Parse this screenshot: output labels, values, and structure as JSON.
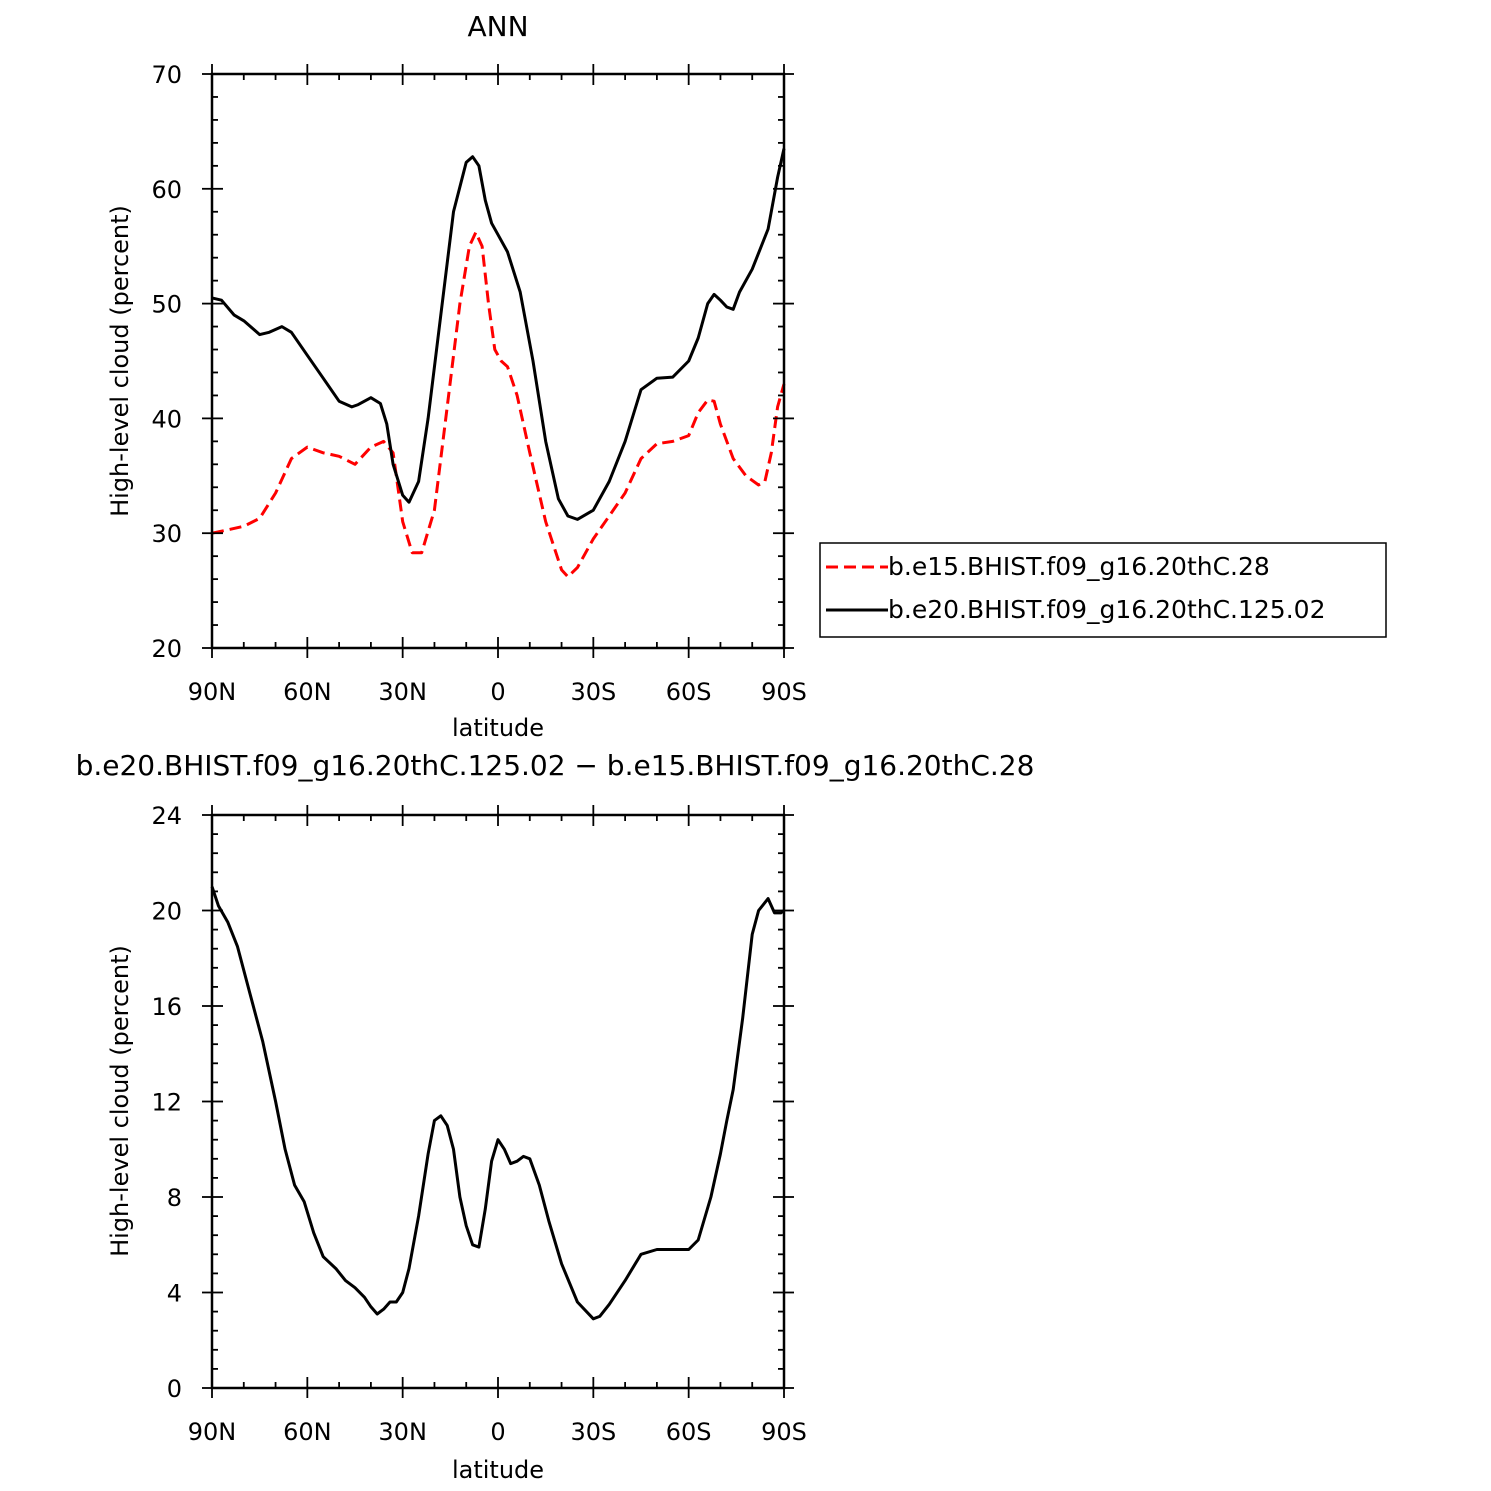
{
  "chart_data": [
    {
      "type": "line",
      "title": "ANN",
      "xlabel": "latitude",
      "ylabel": "High-level cloud (percent)",
      "xlim": [
        -90,
        90
      ],
      "ylim": [
        20,
        70
      ],
      "x_tick_values": [
        -90,
        -60,
        -30,
        0,
        30,
        60,
        90
      ],
      "x_tick_labels": [
        "90N",
        "60N",
        "30N",
        "0",
        "30S",
        "60S",
        "90S"
      ],
      "y_ticks": [
        20,
        30,
        40,
        50,
        60,
        70
      ],
      "legend_position": "right",
      "series": [
        {
          "name": "b.e15.BHIST.f09_g16.20thC.28",
          "color": "#ff0000",
          "style": "dashed",
          "x": [
            -90,
            -85,
            -80,
            -75,
            -70,
            -65,
            -60,
            -55,
            -50,
            -45,
            -40,
            -36,
            -33,
            -30,
            -27,
            -24,
            -20,
            -16,
            -12,
            -9,
            -7,
            -5,
            -3,
            -1,
            1,
            3,
            6,
            10,
            15,
            20,
            22,
            25,
            30,
            35,
            40,
            45,
            50,
            55,
            60,
            63,
            66,
            68,
            70,
            74,
            78,
            82,
            84,
            86,
            88,
            90
          ],
          "y": [
            30,
            30.3,
            30.6,
            31.3,
            33.5,
            36.5,
            37.5,
            37,
            36.7,
            36,
            37.5,
            38,
            37,
            31,
            28.3,
            28.3,
            32,
            41,
            50,
            55,
            56.2,
            55,
            50,
            46,
            45,
            44.5,
            42,
            37,
            31,
            26.8,
            26.2,
            27,
            29.5,
            31.5,
            33.5,
            36.5,
            37.8,
            38,
            38.5,
            40.5,
            41.6,
            41.5,
            39.5,
            36.5,
            35,
            34.2,
            34.5,
            37,
            41,
            43
          ]
        },
        {
          "name": "b.e20.BHIST.f09_g16.20thC.125.02",
          "color": "#000000",
          "style": "solid",
          "x": [
            -90,
            -87,
            -83,
            -80,
            -75,
            -72,
            -68,
            -65,
            -60,
            -55,
            -50,
            -46,
            -44,
            -40,
            -37,
            -35,
            -33,
            -30,
            -28,
            -25,
            -22,
            -18,
            -14,
            -10,
            -8,
            -6,
            -4,
            -2,
            0,
            3,
            7,
            11,
            15,
            19,
            22,
            25,
            30,
            35,
            40,
            45,
            50,
            55,
            60,
            63,
            66,
            68,
            70,
            72,
            74,
            76,
            80,
            85,
            88,
            90
          ],
          "y": [
            50.5,
            50.3,
            49,
            48.5,
            47.3,
            47.5,
            48,
            47.5,
            45.5,
            43.5,
            41.5,
            41,
            41.2,
            41.8,
            41.3,
            39.5,
            36,
            33.3,
            32.7,
            34.5,
            40,
            49,
            58,
            62.3,
            62.8,
            62,
            59,
            57,
            56,
            54.5,
            51,
            45,
            38,
            33,
            31.5,
            31.2,
            32,
            34.5,
            38,
            42.5,
            43.5,
            43.6,
            45,
            47,
            50,
            50.8,
            50.3,
            49.7,
            49.5,
            51,
            53,
            56.5,
            61,
            63.5
          ]
        }
      ]
    },
    {
      "type": "line",
      "title": "b.e20.BHIST.f09_g16.20thC.125.02 − b.e15.BHIST.f09_g16.20thC.28",
      "xlabel": "latitude",
      "ylabel": "High-level cloud (percent)",
      "xlim": [
        -90,
        90
      ],
      "ylim": [
        0,
        24
      ],
      "x_tick_values": [
        -90,
        -60,
        -30,
        0,
        30,
        60,
        90
      ],
      "x_tick_labels": [
        "90N",
        "60N",
        "30N",
        "0",
        "30S",
        "60S",
        "90S"
      ],
      "y_ticks": [
        0,
        4,
        8,
        12,
        16,
        20,
        24
      ],
      "series": [
        {
          "color": "#000000",
          "style": "solid",
          "x": [
            -90,
            -88,
            -85,
            -82,
            -78,
            -74,
            -70,
            -67,
            -64,
            -61,
            -58,
            -55,
            -51,
            -48,
            -45,
            -42,
            -40,
            -38,
            -36,
            -34,
            -32,
            -30,
            -28,
            -25,
            -22,
            -20,
            -18,
            -16,
            -14,
            -12,
            -10,
            -8,
            -6,
            -4,
            -2,
            0,
            2,
            4,
            6,
            8,
            10,
            13,
            16,
            20,
            25,
            30,
            32,
            35,
            40,
            45,
            50,
            55,
            60,
            63,
            67,
            70,
            72,
            74,
            77,
            80,
            82,
            85,
            87,
            89,
            90
          ],
          "y": [
            21,
            20.2,
            19.5,
            18.5,
            16.5,
            14.5,
            12,
            10,
            8.5,
            7.8,
            6.5,
            5.5,
            5,
            4.5,
            4.2,
            3.8,
            3.4,
            3.1,
            3.3,
            3.6,
            3.6,
            4,
            5,
            7.2,
            9.8,
            11.2,
            11.4,
            11,
            10,
            8,
            6.8,
            6,
            5.9,
            7.5,
            9.5,
            10.4,
            10,
            9.4,
            9.5,
            9.7,
            9.6,
            8.5,
            7,
            5.2,
            3.6,
            2.9,
            3,
            3.5,
            4.5,
            5.6,
            5.8,
            5.8,
            5.8,
            6.2,
            8,
            9.8,
            11.2,
            12.5,
            15.5,
            19,
            20,
            20.5,
            19.9,
            19.9,
            20
          ]
        }
      ]
    }
  ]
}
